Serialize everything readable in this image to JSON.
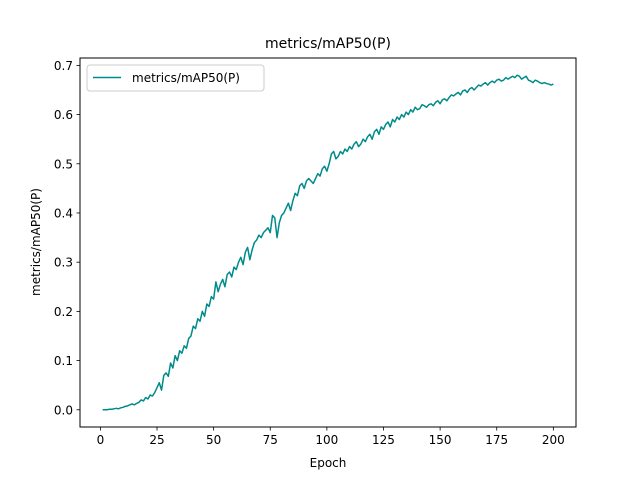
{
  "chart_data": {
    "type": "line",
    "title": "metrics/mAP50(P)",
    "xlabel": "Epoch",
    "ylabel": "metrics/mAP50(P)",
    "xlim": [
      -9,
      210
    ],
    "ylim": [
      -0.035,
      0.715
    ],
    "xticks": [
      0,
      25,
      50,
      75,
      100,
      125,
      150,
      175,
      200
    ],
    "yticks": [
      0.0,
      0.1,
      0.2,
      0.3,
      0.4,
      0.5,
      0.6,
      0.7
    ],
    "xtick_labels": [
      "0",
      "25",
      "50",
      "75",
      "100",
      "125",
      "150",
      "175",
      "200"
    ],
    "ytick_labels": [
      "0.0",
      "0.1",
      "0.2",
      "0.3",
      "0.4",
      "0.5",
      "0.6",
      "0.7"
    ],
    "grid": false,
    "legend": "top-left",
    "colors": {
      "series": "#008b8b"
    },
    "series": [
      {
        "name": "metrics/mAP50(P)",
        "x": [
          1,
          2,
          3,
          4,
          5,
          6,
          7,
          8,
          9,
          10,
          11,
          12,
          13,
          14,
          15,
          16,
          17,
          18,
          19,
          20,
          21,
          22,
          23,
          24,
          25,
          26,
          27,
          28,
          29,
          30,
          31,
          32,
          33,
          34,
          35,
          36,
          37,
          38,
          39,
          40,
          41,
          42,
          43,
          44,
          45,
          46,
          47,
          48,
          49,
          50,
          51,
          52,
          53,
          54,
          55,
          56,
          57,
          58,
          59,
          60,
          61,
          62,
          63,
          64,
          65,
          66,
          67,
          68,
          69,
          70,
          71,
          72,
          73,
          74,
          75,
          76,
          77,
          78,
          79,
          80,
          81,
          82,
          83,
          84,
          85,
          86,
          87,
          88,
          89,
          90,
          91,
          92,
          93,
          94,
          95,
          96,
          97,
          98,
          99,
          100,
          101,
          102,
          103,
          104,
          105,
          106,
          107,
          108,
          109,
          110,
          111,
          112,
          113,
          114,
          115,
          116,
          117,
          118,
          119,
          120,
          121,
          122,
          123,
          124,
          125,
          126,
          127,
          128,
          129,
          130,
          131,
          132,
          133,
          134,
          135,
          136,
          137,
          138,
          139,
          140,
          141,
          142,
          143,
          144,
          145,
          146,
          147,
          148,
          149,
          150,
          151,
          152,
          153,
          154,
          155,
          156,
          157,
          158,
          159,
          160,
          161,
          162,
          163,
          164,
          165,
          166,
          167,
          168,
          169,
          170,
          171,
          172,
          173,
          174,
          175,
          176,
          177,
          178,
          179,
          180,
          181,
          182,
          183,
          184,
          185,
          186,
          187,
          188,
          189,
          190,
          191,
          192,
          193,
          194,
          195,
          196,
          197,
          198,
          199,
          200
        ],
        "values": [
          0.0,
          0.0,
          0.0,
          0.001,
          0.001,
          0.002,
          0.003,
          0.002,
          0.004,
          0.005,
          0.007,
          0.008,
          0.01,
          0.012,
          0.01,
          0.013,
          0.015,
          0.02,
          0.018,
          0.025,
          0.022,
          0.03,
          0.028,
          0.035,
          0.045,
          0.055,
          0.04,
          0.07,
          0.075,
          0.068,
          0.095,
          0.085,
          0.11,
          0.1,
          0.12,
          0.115,
          0.13,
          0.125,
          0.145,
          0.15,
          0.17,
          0.165,
          0.185,
          0.18,
          0.2,
          0.19,
          0.215,
          0.21,
          0.23,
          0.225,
          0.26,
          0.24,
          0.255,
          0.265,
          0.25,
          0.275,
          0.28,
          0.27,
          0.29,
          0.285,
          0.3,
          0.31,
          0.295,
          0.32,
          0.33,
          0.305,
          0.325,
          0.34,
          0.345,
          0.355,
          0.35,
          0.36,
          0.365,
          0.37,
          0.36,
          0.395,
          0.39,
          0.35,
          0.38,
          0.395,
          0.4,
          0.41,
          0.42,
          0.405,
          0.425,
          0.44,
          0.435,
          0.455,
          0.46,
          0.45,
          0.465,
          0.47,
          0.465,
          0.46,
          0.47,
          0.48,
          0.475,
          0.49,
          0.495,
          0.485,
          0.5,
          0.52,
          0.525,
          0.51,
          0.515,
          0.525,
          0.52,
          0.53,
          0.525,
          0.535,
          0.53,
          0.54,
          0.545,
          0.535,
          0.54,
          0.55,
          0.545,
          0.555,
          0.56,
          0.55,
          0.565,
          0.57,
          0.56,
          0.575,
          0.57,
          0.58,
          0.585,
          0.575,
          0.59,
          0.585,
          0.595,
          0.59,
          0.6,
          0.595,
          0.605,
          0.6,
          0.61,
          0.605,
          0.615,
          0.61,
          0.612,
          0.62,
          0.618,
          0.615,
          0.62,
          0.622,
          0.618,
          0.625,
          0.628,
          0.622,
          0.63,
          0.632,
          0.628,
          0.635,
          0.64,
          0.638,
          0.642,
          0.645,
          0.64,
          0.648,
          0.65,
          0.645,
          0.652,
          0.655,
          0.65,
          0.655,
          0.66,
          0.658,
          0.662,
          0.665,
          0.66,
          0.665,
          0.668,
          0.665,
          0.67,
          0.672,
          0.668,
          0.67,
          0.675,
          0.672,
          0.675,
          0.678,
          0.675,
          0.68,
          0.678,
          0.672,
          0.675,
          0.678,
          0.67,
          0.668,
          0.665,
          0.67,
          0.668,
          0.665,
          0.663,
          0.665,
          0.663,
          0.662,
          0.66,
          0.662
        ]
      }
    ]
  }
}
